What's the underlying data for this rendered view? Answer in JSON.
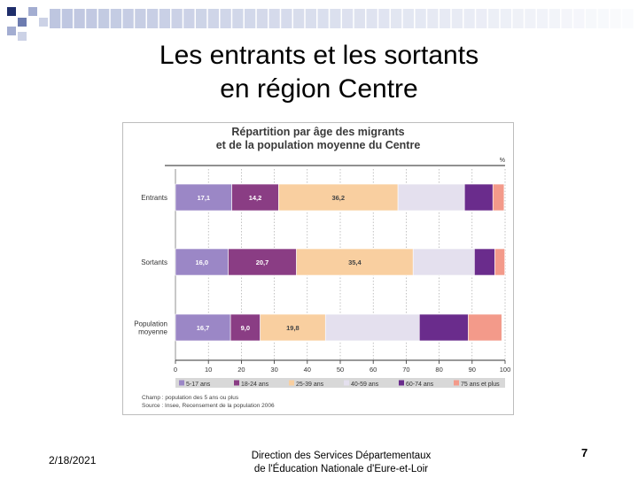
{
  "slide": {
    "title_line1": "Les entrants et les sortants",
    "title_line2": "en région Centre",
    "date": "2/18/2021",
    "footer_line1": "Direction des Services Départementaux",
    "footer_line2": "de l'Éducation Nationale d'Eure-et-Loir",
    "page_number": "7"
  },
  "decoration": {
    "square_colors": [
      "#1f2e6b",
      "#6d7cb0",
      "#a3add1",
      "#ccd2e6",
      "#e3e6f0"
    ]
  },
  "chart_data": {
    "type": "bar",
    "orientation": "horizontal",
    "stacked": true,
    "title_line1": "Répartition par âge des migrants",
    "title_line2": "et de la population moyenne du Centre",
    "unit": "%",
    "categories": [
      "Entrants",
      "Sortants",
      "Population moyenne"
    ],
    "series": [
      {
        "name": "5-17 ans",
        "color": "#9b87c6",
        "values": [
          17.1,
          16.0,
          16.7
        ],
        "labels": [
          "17,1",
          "16,0",
          "16,7"
        ]
      },
      {
        "name": "18-24 ans",
        "color": "#8a3d84",
        "values": [
          14.2,
          20.7,
          9.0
        ],
        "labels": [
          "14,2",
          "20,7",
          "9,0"
        ]
      },
      {
        "name": "25-39 ans",
        "color": "#f9cfa0",
        "values": [
          36.2,
          35.4,
          19.8
        ],
        "labels": [
          "36,2",
          "35,4",
          "19,8"
        ]
      },
      {
        "name": "40-59 ans",
        "color": "#e4e0ee",
        "values": [
          20.2,
          18.6,
          28.5
        ],
        "labels": [
          "20,2",
          "18,6",
          "28,5"
        ]
      },
      {
        "name": "60-74 ans",
        "color": "#6a2c8c",
        "values": [
          8.6,
          6.2,
          14.8
        ],
        "labels": [
          "8,6",
          "6,2",
          "14,8"
        ]
      },
      {
        "name": "75 ans et plus",
        "color": "#f39a8a",
        "values": [
          3.4,
          3.0,
          10.2
        ],
        "labels": [
          "3,4",
          "3,0",
          "10,2"
        ]
      }
    ],
    "xlim": [
      0,
      100
    ],
    "xticks": [
      0,
      10,
      20,
      30,
      40,
      50,
      60,
      70,
      80,
      90,
      100
    ],
    "grid": true,
    "legend_position": "bottom",
    "notes": [
      "Champ : population des 5 ans ou plus",
      "Source : Insee, Recensement de la population 2006"
    ]
  }
}
